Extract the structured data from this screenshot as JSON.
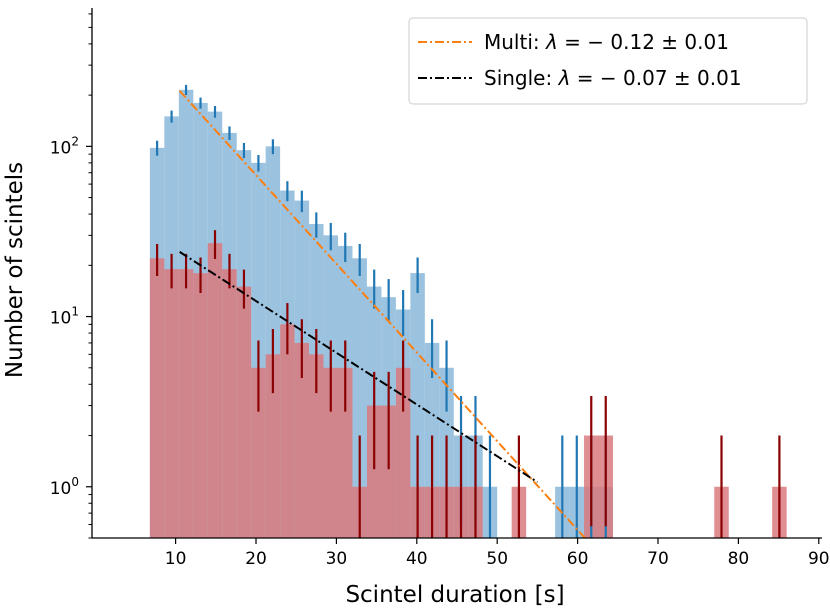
{
  "chart_data": {
    "type": "bar",
    "scale_y": "log",
    "xlabel": "Scintel duration [s]",
    "ylabel": "Number of scintels",
    "xlim": [
      -0.4,
      90.4
    ],
    "ylim": [
      0.5,
      650
    ],
    "x_ticks": [
      10,
      20,
      30,
      40,
      50,
      60,
      70,
      80,
      90
    ],
    "x_tick_labels": [
      "10",
      "20",
      "30",
      "40",
      "50",
      "60",
      "70",
      "80",
      "90"
    ],
    "y_ticks": [
      1,
      10,
      100
    ],
    "y_tick_labels": [
      {
        "base": "10",
        "exp": "0"
      },
      {
        "base": "10",
        "exp": "1"
      },
      {
        "base": "10",
        "exp": "2"
      }
    ],
    "bin_width": 1.8,
    "series": [
      {
        "name": "Multi histogram",
        "color": "#1f77b4",
        "fill": "#8ab8db",
        "errorbar_color": "#1f77b4",
        "bin_centers": [
          7.7,
          9.5,
          11.3,
          13.1,
          14.9,
          16.7,
          18.5,
          20.3,
          22.1,
          23.9,
          25.7,
          27.5,
          29.3,
          31.1,
          32.9,
          34.7,
          36.5,
          38.3,
          40.1,
          41.9,
          43.7,
          45.5,
          47.3,
          49.1,
          58.1,
          59.9,
          61.7,
          63.5
        ],
        "values": [
          98,
          150,
          215,
          180,
          160,
          120,
          95,
          80,
          100,
          55,
          48,
          35,
          30,
          26,
          22,
          15,
          13,
          11,
          18,
          7,
          5,
          2,
          2,
          1,
          1,
          1,
          1,
          1
        ]
      },
      {
        "name": "Single histogram",
        "color": "#b05454",
        "fill": "#d97a7e",
        "errorbar_color": "#8b0000",
        "bin_centers": [
          7.7,
          9.5,
          11.3,
          13.1,
          14.9,
          16.7,
          18.5,
          20.3,
          22.1,
          23.9,
          25.7,
          27.5,
          29.3,
          31.1,
          32.9,
          34.7,
          36.5,
          38.3,
          40.1,
          41.9,
          43.7,
          45.5,
          47.3,
          52.7,
          61.7,
          63.5,
          77.9,
          85.1
        ],
        "values": [
          22,
          19,
          19,
          18,
          27,
          19,
          15,
          5,
          6,
          9,
          7,
          6,
          5,
          5,
          1,
          3,
          3,
          5,
          1,
          1,
          1,
          1,
          1,
          1,
          2,
          2,
          1,
          1
        ]
      },
      {
        "name": "Multi fit",
        "label": "Multi: λ = − 0.12 ± 0.01",
        "color": "#ff7f0e",
        "style": "dashdot",
        "x_start": 10.5,
        "y_start": 212,
        "x_end": 63,
        "lambda": -0.12,
        "lambda_err": 0.01
      },
      {
        "name": "Single fit",
        "label": "Single: λ = − 0.07 ± 0.01",
        "color": "#000000",
        "style": "dashdot",
        "x_start": 10.5,
        "y_start": 24,
        "x_end": 55,
        "lambda": -0.07,
        "lambda_err": 0.01
      }
    ],
    "legend": {
      "placement": "top-right",
      "entries": [
        {
          "prefix": "Multi: ",
          "symbol": "λ",
          "rest": " = − 0.12 ± 0.01",
          "color": "#ff7f0e"
        },
        {
          "prefix": "Single: ",
          "symbol": "λ",
          "rest": " = − 0.07 ± 0.01",
          "color": "#000000"
        }
      ]
    }
  }
}
